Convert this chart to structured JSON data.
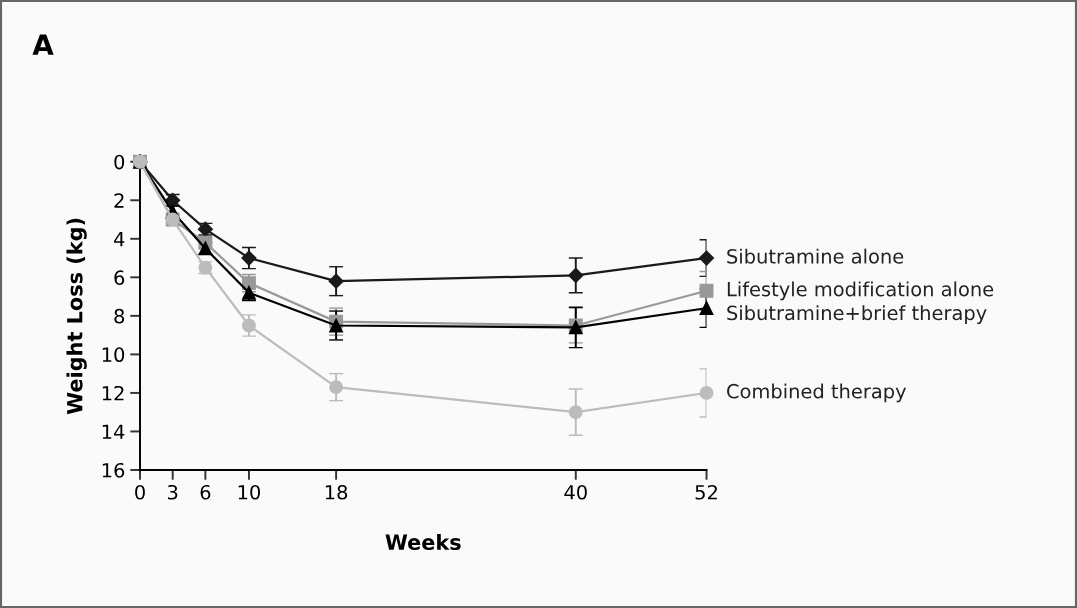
{
  "chart_data": {
    "type": "line",
    "xlabel": "Weeks",
    "ylabel": "Weight Loss (kg)",
    "annotations": [
      "A"
    ],
    "x": [
      0,
      3,
      6,
      10,
      18,
      40,
      52
    ],
    "xlim": [
      0,
      52
    ],
    "xticks": [
      0,
      3,
      6,
      10,
      18,
      40,
      52
    ],
    "ylim": [
      16,
      0
    ],
    "yticks": [
      0,
      2,
      4,
      6,
      8,
      10,
      12,
      14,
      16
    ],
    "grid": false,
    "legend": false,
    "series": [
      {
        "name": "Sibutramine alone",
        "color": "#1a1a1a",
        "marker": "diamond",
        "values": [
          0,
          2.0,
          3.5,
          5.0,
          6.2,
          5.9,
          5.0
        ],
        "errors": [
          null,
          0.3,
          0.3,
          0.55,
          0.75,
          0.9,
          0.95
        ]
      },
      {
        "name": "Lifestyle modification alone",
        "color": "#999999",
        "marker": "square",
        "values": [
          0,
          3.0,
          4.2,
          6.3,
          8.3,
          8.5,
          6.7
        ],
        "errors": [
          null,
          null,
          0.3,
          0.45,
          0.7,
          0.9,
          1.0
        ]
      },
      {
        "name": "Sibutramine+brief therapy",
        "color": "#000000",
        "marker": "triangle",
        "values": [
          0,
          2.6,
          4.5,
          6.8,
          8.5,
          8.6,
          7.6
        ],
        "errors": [
          null,
          0.3,
          0.3,
          0.4,
          0.75,
          1.05,
          1.0
        ]
      },
      {
        "name": "Combined therapy",
        "color": "#bcbcbc",
        "marker": "circle",
        "values": [
          0,
          3.0,
          5.5,
          8.5,
          11.7,
          13.0,
          12.0
        ],
        "errors": [
          null,
          null,
          0.3,
          0.55,
          0.7,
          1.2,
          1.25
        ]
      }
    ]
  }
}
